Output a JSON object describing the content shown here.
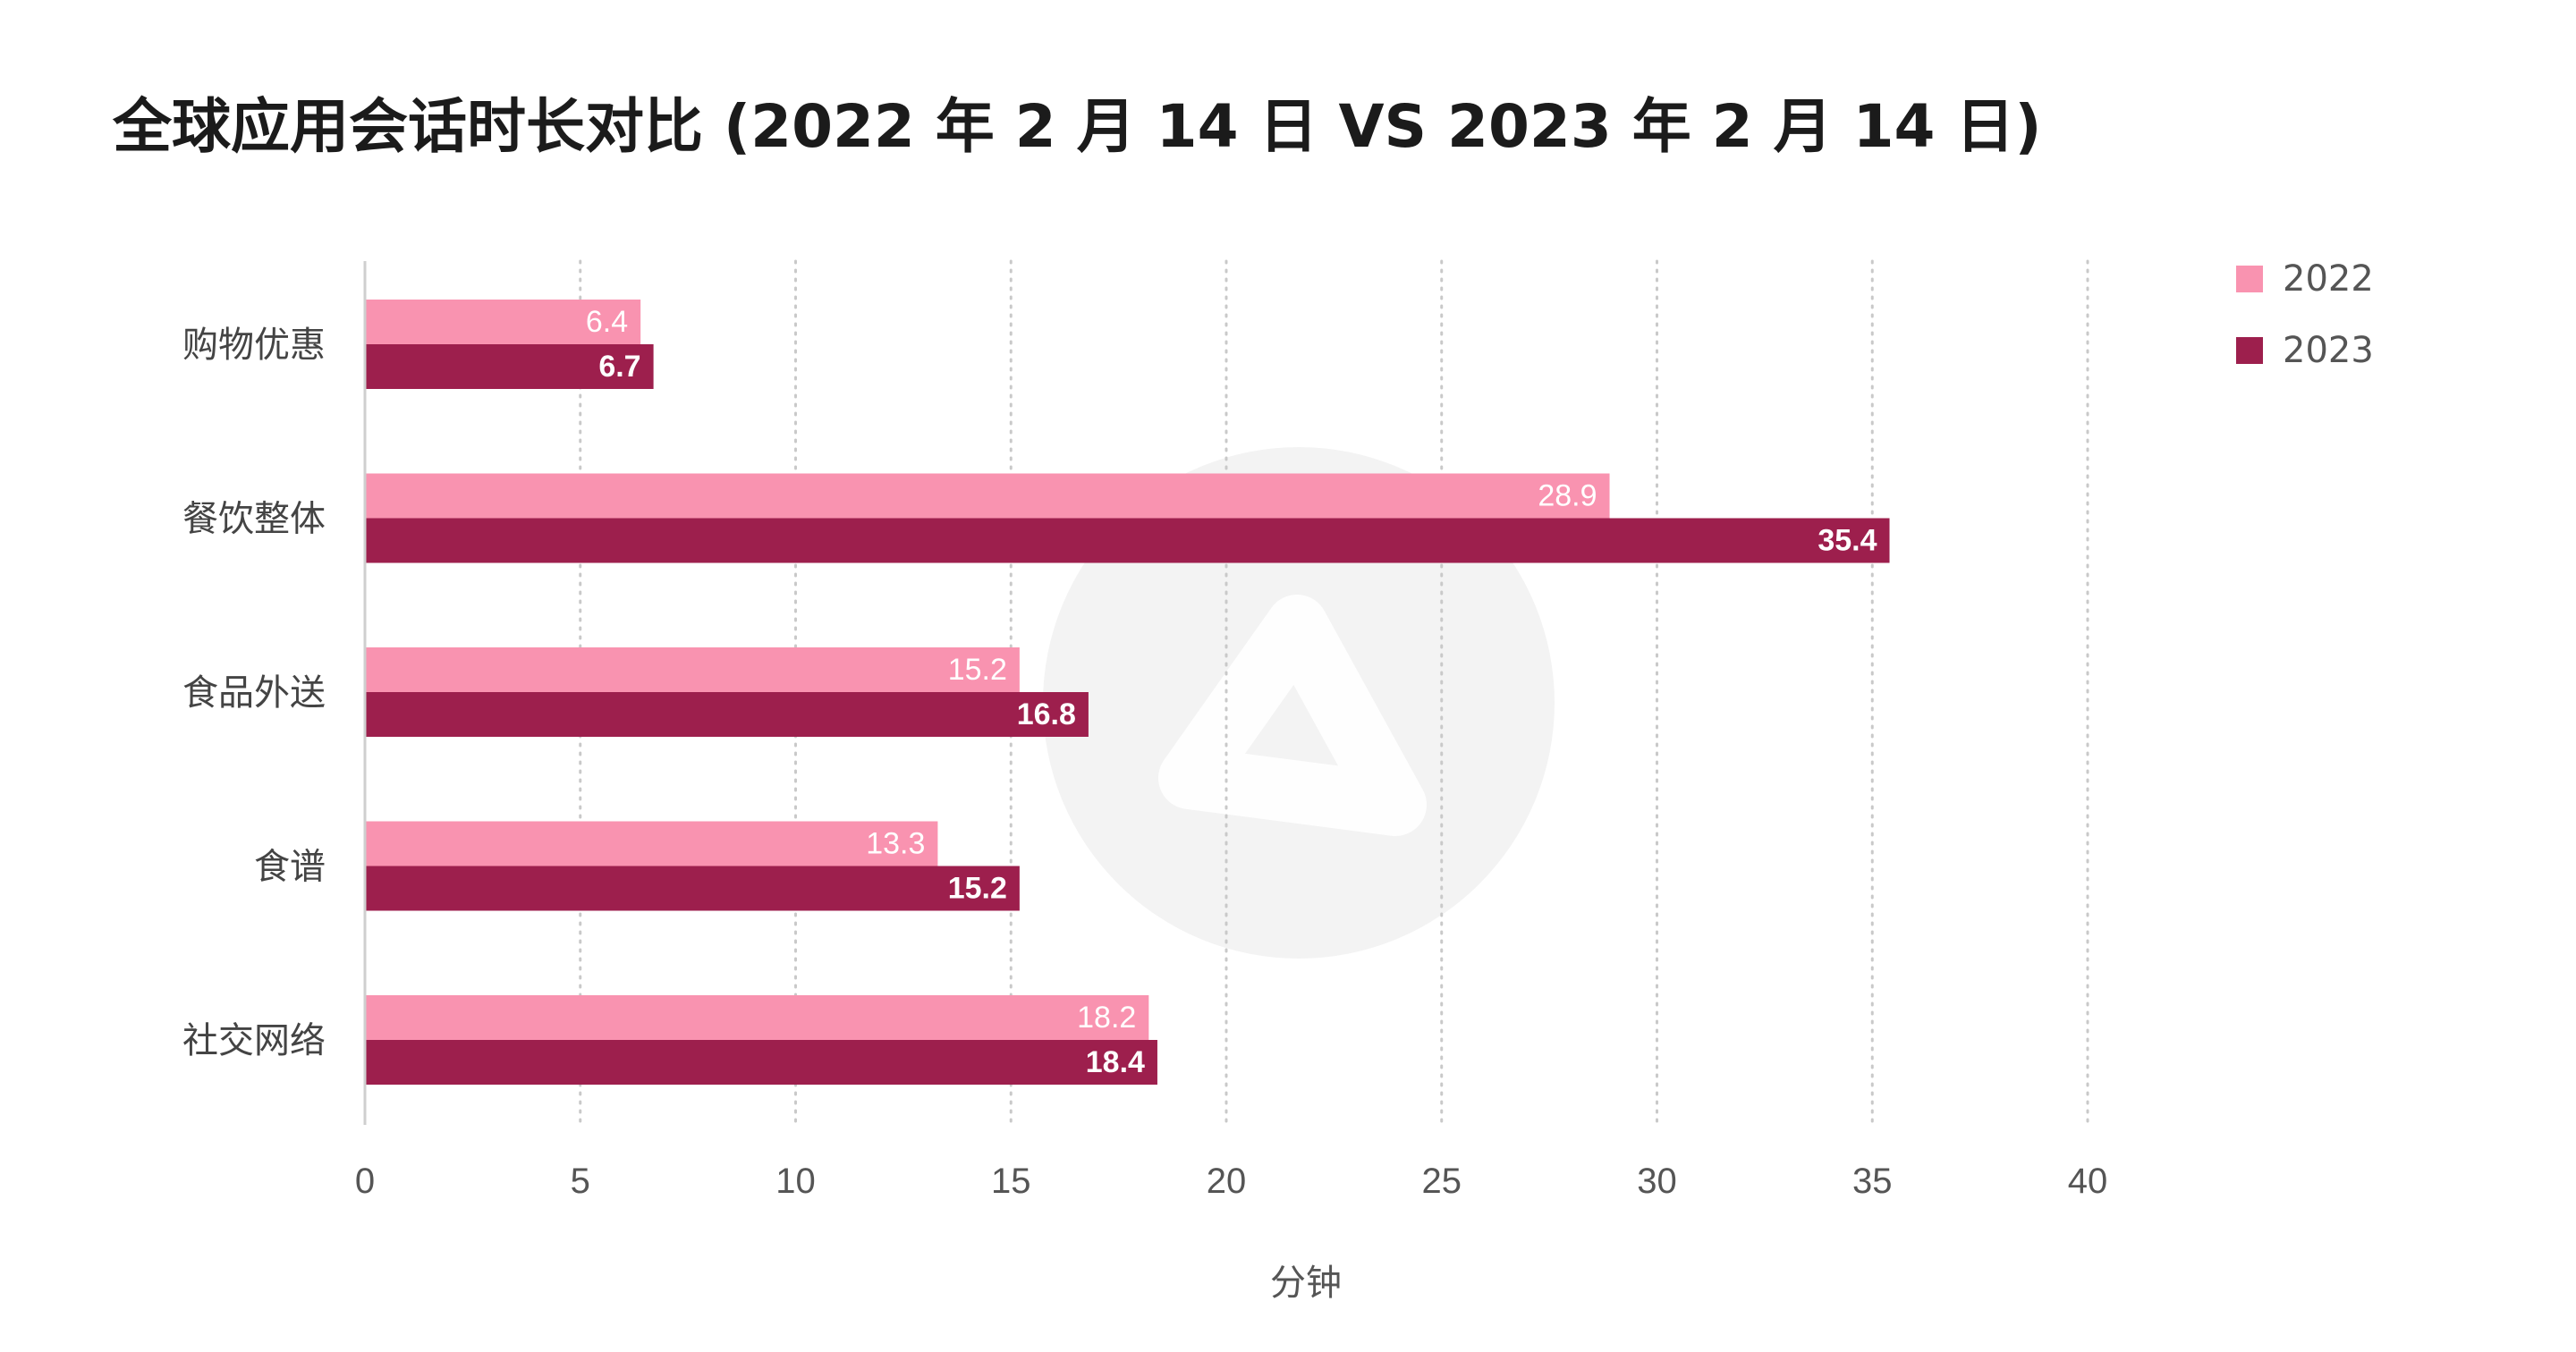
{
  "chart_data": {
    "type": "bar",
    "orientation": "horizontal",
    "title": "全球应用会话时长对比 (2022 年 2 月 14 日 VS 2023 年 2 月 14 日)",
    "xlabel": "分钟",
    "ylabel": "",
    "xlim": [
      0,
      40
    ],
    "x_ticks": [
      "0",
      "5",
      "10",
      "15",
      "20",
      "25",
      "30",
      "35",
      "40"
    ],
    "grid": "vertical dotted",
    "legend_position": "top-right",
    "categories": [
      "购物优惠",
      "餐饮整体",
      "食品外送",
      "食谱",
      "社交网络"
    ],
    "series": [
      {
        "name": "2022",
        "color": "#f993b0",
        "values": [
          6.4,
          28.9,
          15.2,
          13.3,
          18.2
        ],
        "labels": [
          "6.4",
          "28.9",
          "15.2",
          "13.3",
          "18.2"
        ]
      },
      {
        "name": "2023",
        "color": "#9d1f4d",
        "values": [
          6.7,
          35.4,
          16.8,
          15.2,
          18.4
        ],
        "labels": [
          "6.7",
          "35.4",
          "16.8",
          "15.2",
          "18.4"
        ]
      }
    ]
  }
}
